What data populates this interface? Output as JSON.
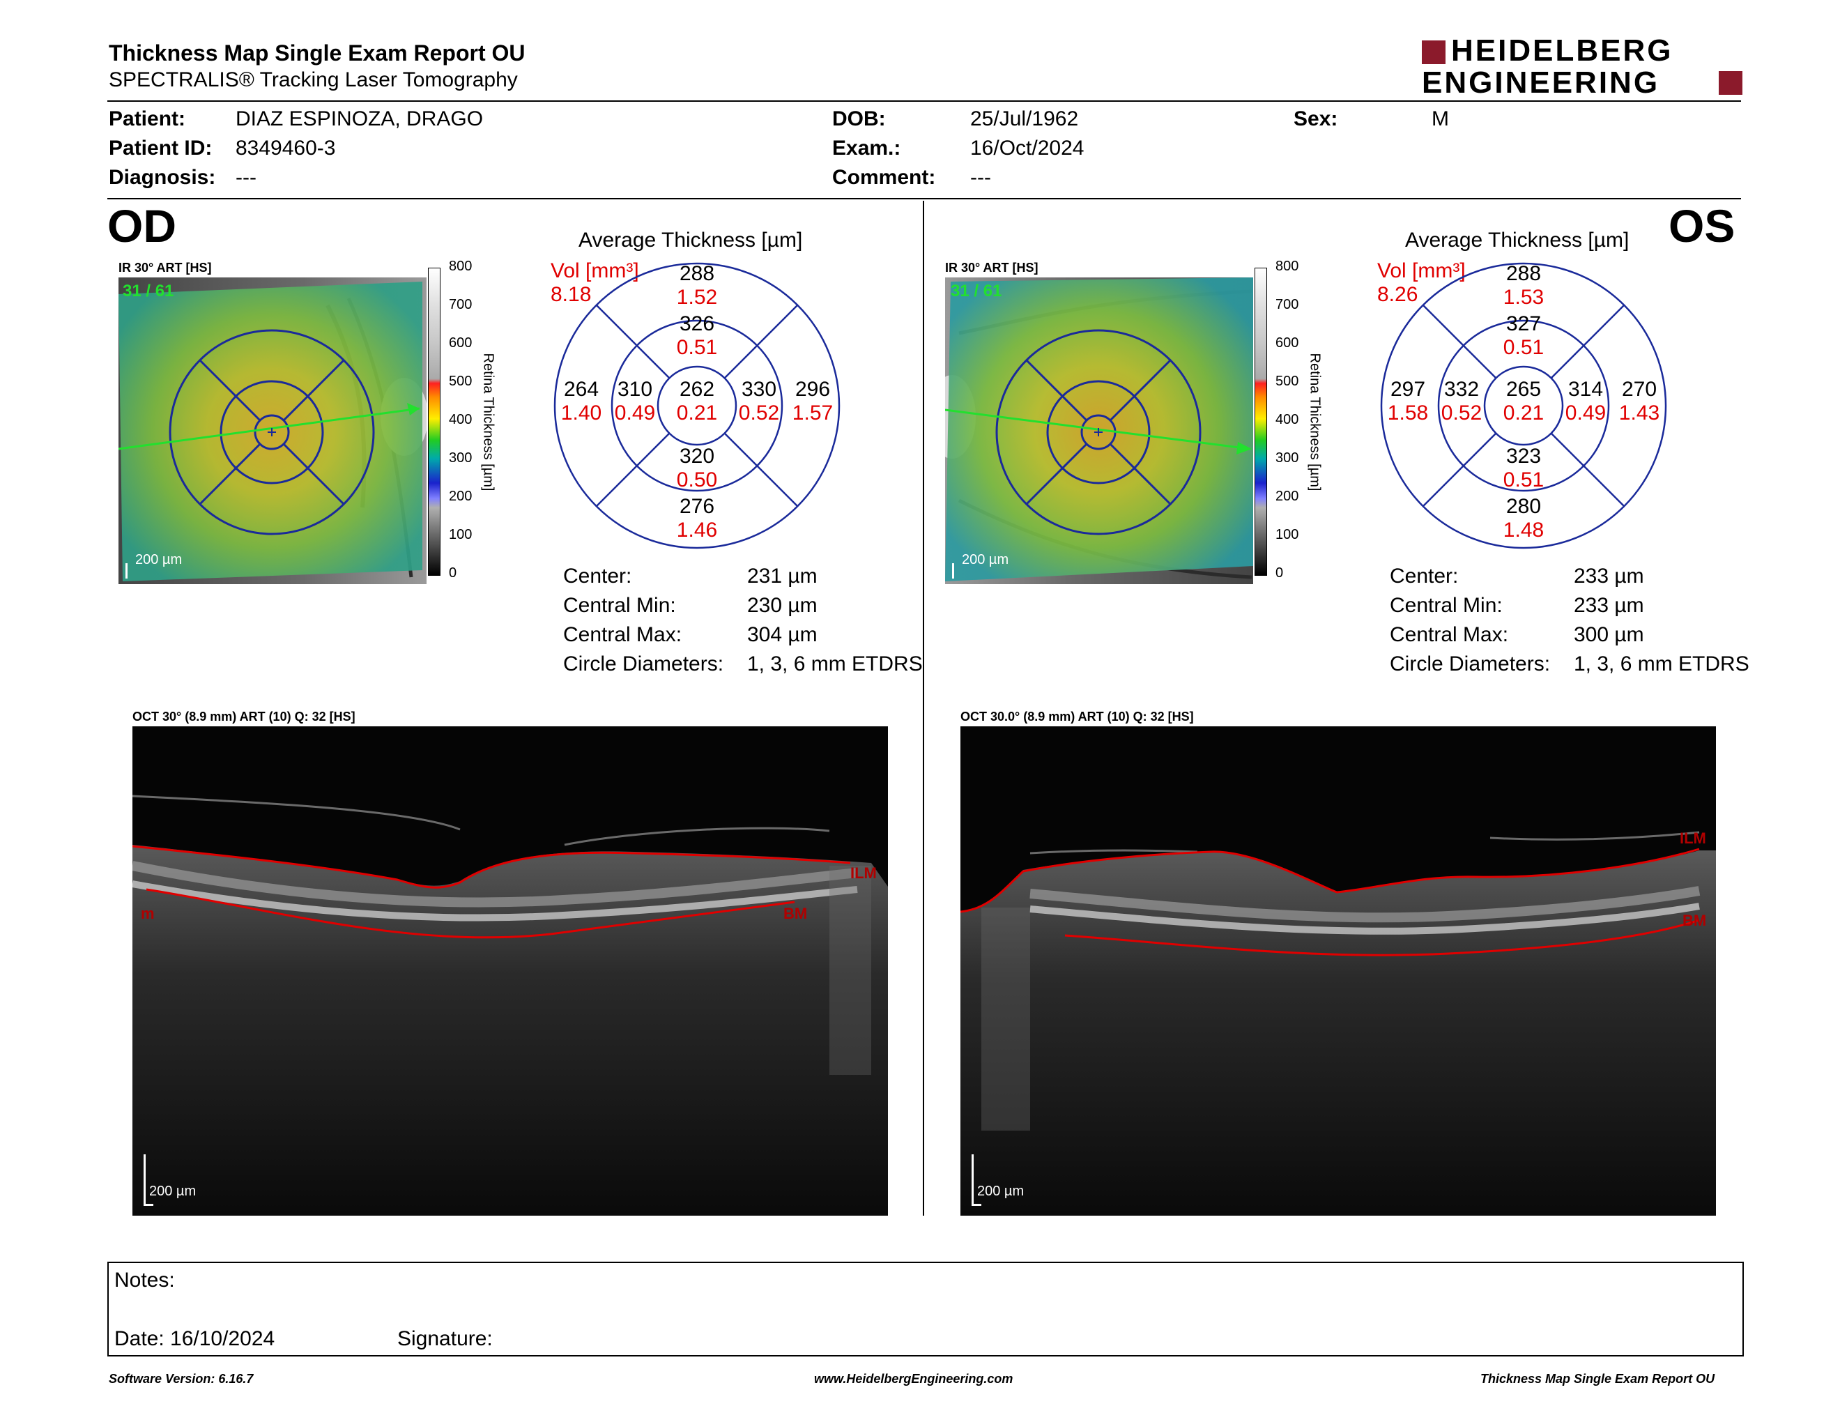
{
  "header": {
    "title": "Thickness Map Single Exam Report OU",
    "subtitle": "SPECTRALIS® Tracking Laser Tomography",
    "logo_line1": "HEIDELBERG",
    "logo_line2": "ENGINEERING"
  },
  "patient": {
    "patient_label": "Patient:",
    "patient_value": "DIAZ ESPINOZA, DRAGO",
    "id_label": "Patient ID:",
    "id_value": "8349460-3",
    "diagnosis_label": "Diagnosis:",
    "diagnosis_value": "---",
    "dob_label": "DOB:",
    "dob_value": "25/Jul/1962",
    "exam_label": "Exam.:",
    "exam_value": "16/Oct/2024",
    "comment_label": "Comment:",
    "comment_value": "---",
    "sex_label": "Sex:",
    "sex_value": "M"
  },
  "od": {
    "eye_label": "OD",
    "ir_label": "IR 30° ART [HS]",
    "frame_counter": "31 / 61",
    "scale_bar": "200 µm",
    "colorbar_ticks": [
      "800",
      "700",
      "600",
      "500",
      "400",
      "300",
      "200",
      "100",
      "0"
    ],
    "colorbar_title": "Retina Thickness [µm]",
    "avg_title": "Average Thickness [µm]",
    "vol_label": "Vol [mm³]",
    "vol_total": "8.18",
    "sectors": {
      "outer_sup": {
        "t": "288",
        "v": "1.52"
      },
      "inner_sup": {
        "t": "326",
        "v": "0.51"
      },
      "outer_left": {
        "t": "264",
        "v": "1.40"
      },
      "inner_left": {
        "t": "310",
        "v": "0.49"
      },
      "center": {
        "t": "262",
        "v": "0.21"
      },
      "inner_right": {
        "t": "330",
        "v": "0.52"
      },
      "outer_right": {
        "t": "296",
        "v": "1.57"
      },
      "inner_inf": {
        "t": "320",
        "v": "0.50"
      },
      "outer_inf": {
        "t": "276",
        "v": "1.46"
      }
    },
    "stats": {
      "center_label": "Center:",
      "center_value": "231 µm",
      "cmin_label": "Central Min:",
      "cmin_value": "230 µm",
      "cmax_label": "Central Max:",
      "cmax_value": "304 µm",
      "diam_label": "Circle Diameters:",
      "diam_value": "1, 3, 6 mm ETDRS"
    },
    "oct_label": "OCT 30° (8.9 mm) ART (10) Q: 32 [HS]",
    "oct_scale": "200 µm",
    "layer_top": "ILM",
    "layer_bottom": "BM",
    "layer_left_partial": "m"
  },
  "os": {
    "eye_label": "OS",
    "ir_label": "IR 30° ART [HS]",
    "frame_counter": "31 / 61",
    "scale_bar": "200 µm",
    "colorbar_ticks": [
      "800",
      "700",
      "600",
      "500",
      "400",
      "300",
      "200",
      "100",
      "0"
    ],
    "colorbar_title": "Retina Thickness [µm]",
    "avg_title": "Average Thickness [µm]",
    "vol_label": "Vol [mm³]",
    "vol_total": "8.26",
    "sectors": {
      "outer_sup": {
        "t": "288",
        "v": "1.53"
      },
      "inner_sup": {
        "t": "327",
        "v": "0.51"
      },
      "outer_left": {
        "t": "297",
        "v": "1.58"
      },
      "inner_left": {
        "t": "332",
        "v": "0.52"
      },
      "center": {
        "t": "265",
        "v": "0.21"
      },
      "inner_right": {
        "t": "314",
        "v": "0.49"
      },
      "outer_right": {
        "t": "270",
        "v": "1.43"
      },
      "inner_inf": {
        "t": "323",
        "v": "0.51"
      },
      "outer_inf": {
        "t": "280",
        "v": "1.48"
      }
    },
    "stats": {
      "center_label": "Center:",
      "center_value": "233 µm",
      "cmin_label": "Central Min:",
      "cmin_value": "233 µm",
      "cmax_label": "Central Max:",
      "cmax_value": "300 µm",
      "diam_label": "Circle Diameters:",
      "diam_value": "1, 3, 6 mm ETDRS"
    },
    "oct_label": "OCT 30.0° (8.9 mm) ART (10) Q: 32 [HS]",
    "oct_scale": "200 µm",
    "layer_top": "ILM",
    "layer_bottom": "BM"
  },
  "notes": {
    "notes_label": "Notes:",
    "date_label": "Date: 16/10/2024",
    "signature_label": "Signature:"
  },
  "footer": {
    "software": "Software Version: 6.16.7",
    "website": "www.HeidelbergEngineering.com",
    "report": "Thickness Map Single Exam Report OU"
  },
  "colors": {
    "red": "#e00000",
    "brand": "#8b1a2b",
    "etdrs_blue": "#1a2a9a"
  }
}
